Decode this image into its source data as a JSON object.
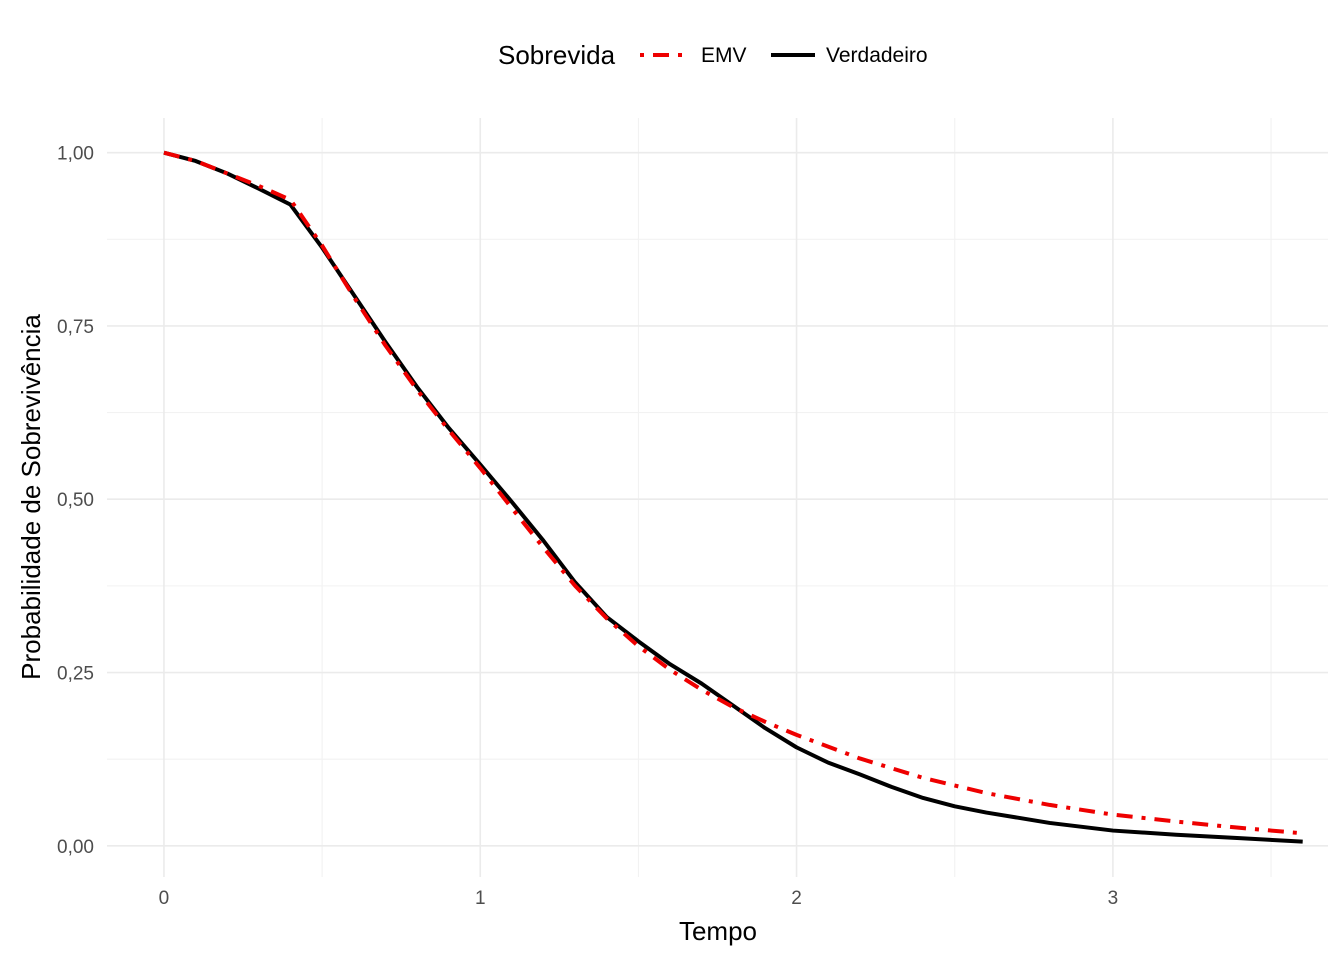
{
  "chart_data": {
    "type": "line",
    "xlabel": "Tempo",
    "ylabel": "Probabilidade de Sobrevivência",
    "xlim": [
      -0.18,
      3.68
    ],
    "ylim": [
      -0.045,
      1.05
    ],
    "x_ticks": [
      0,
      1,
      2,
      3
    ],
    "x_tick_labels": [
      "0",
      "1",
      "2",
      "3"
    ],
    "y_ticks": [
      0,
      0.25,
      0.5,
      0.75,
      1.0
    ],
    "y_tick_labels": [
      "0,00",
      "0,25",
      "0,50",
      "0,75",
      "1,00"
    ],
    "grid": true,
    "legend": {
      "title": "Sobrevida",
      "position": "top"
    },
    "series": [
      {
        "name": "EMV",
        "color": "#ee0000",
        "dash": "dashdot",
        "x": [
          0,
          0.1,
          0.2,
          0.3,
          0.4,
          0.5,
          0.6,
          0.7,
          0.8,
          0.9,
          1.0,
          1.1,
          1.2,
          1.3,
          1.4,
          1.5,
          1.6,
          1.7,
          1.8,
          1.9,
          2.0,
          2.2,
          2.4,
          2.6,
          2.8,
          3.0,
          3.2,
          3.4,
          3.6
        ],
        "y": [
          1.0,
          0.988,
          0.97,
          0.952,
          0.932,
          0.866,
          0.792,
          0.722,
          0.658,
          0.6,
          0.545,
          0.487,
          0.43,
          0.375,
          0.328,
          0.288,
          0.254,
          0.225,
          0.2,
          0.179,
          0.16,
          0.126,
          0.098,
          0.076,
          0.059,
          0.045,
          0.035,
          0.026,
          0.018
        ]
      },
      {
        "name": "Verdadeiro",
        "color": "#000000",
        "dash": "solid",
        "x": [
          0,
          0.1,
          0.2,
          0.3,
          0.4,
          0.5,
          0.6,
          0.7,
          0.8,
          0.9,
          1.0,
          1.1,
          1.2,
          1.3,
          1.4,
          1.5,
          1.6,
          1.7,
          1.8,
          1.9,
          2.0,
          2.1,
          2.2,
          2.3,
          2.4,
          2.5,
          2.6,
          2.8,
          3.0,
          3.2,
          3.4,
          3.6
        ],
        "y": [
          1.0,
          0.988,
          0.97,
          0.948,
          0.925,
          0.863,
          0.795,
          0.727,
          0.662,
          0.603,
          0.55,
          0.496,
          0.44,
          0.38,
          0.33,
          0.295,
          0.262,
          0.234,
          0.202,
          0.17,
          0.142,
          0.12,
          0.103,
          0.085,
          0.069,
          0.057,
          0.048,
          0.033,
          0.022,
          0.016,
          0.011,
          0.006
        ]
      }
    ]
  }
}
